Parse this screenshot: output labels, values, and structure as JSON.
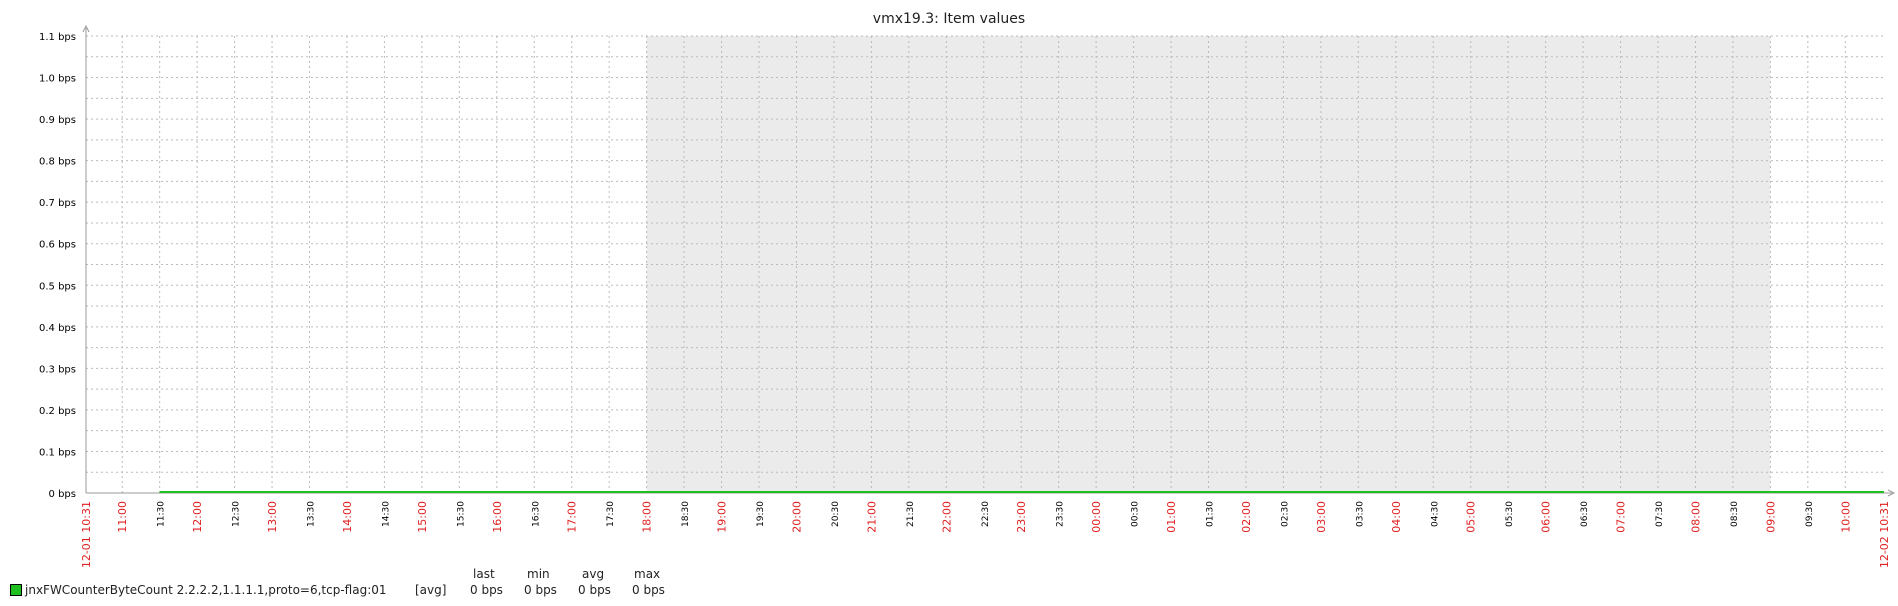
{
  "chart_data": {
    "type": "line",
    "title": "vmx19.3: Item values",
    "ylabel": "",
    "xlabel": "",
    "y_ticks": [
      "0 bps",
      "0.1 bps",
      "0.2 bps",
      "0.3 bps",
      "0.4 bps",
      "0.5 bps",
      "0.6 bps",
      "0.7 bps",
      "0.8 bps",
      "0.9 bps",
      "1.0 bps",
      "1.1 bps"
    ],
    "ylim": [
      0,
      1.1
    ],
    "x_start_label": "12-01 10:31",
    "x_end_label": "12-02 10:31",
    "x_ticks": [
      {
        "label": "11:00",
        "major": true
      },
      {
        "label": "11:30",
        "major": false
      },
      {
        "label": "12:00",
        "major": true
      },
      {
        "label": "12:30",
        "major": false
      },
      {
        "label": "13:00",
        "major": true
      },
      {
        "label": "13:30",
        "major": false
      },
      {
        "label": "14:00",
        "major": true
      },
      {
        "label": "14:30",
        "major": false
      },
      {
        "label": "15:00",
        "major": true
      },
      {
        "label": "15:30",
        "major": false
      },
      {
        "label": "16:00",
        "major": true
      },
      {
        "label": "16:30",
        "major": false
      },
      {
        "label": "17:00",
        "major": true
      },
      {
        "label": "17:30",
        "major": false
      },
      {
        "label": "18:00",
        "major": true
      },
      {
        "label": "18:30",
        "major": false
      },
      {
        "label": "19:00",
        "major": true
      },
      {
        "label": "19:30",
        "major": false
      },
      {
        "label": "20:00",
        "major": true
      },
      {
        "label": "20:30",
        "major": false
      },
      {
        "label": "21:00",
        "major": true
      },
      {
        "label": "21:30",
        "major": false
      },
      {
        "label": "22:00",
        "major": true
      },
      {
        "label": "22:30",
        "major": false
      },
      {
        "label": "23:00",
        "major": true
      },
      {
        "label": "23:30",
        "major": false
      },
      {
        "label": "00:00",
        "major": true
      },
      {
        "label": "00:30",
        "major": false
      },
      {
        "label": "01:00",
        "major": true
      },
      {
        "label": "01:30",
        "major": false
      },
      {
        "label": "02:00",
        "major": true
      },
      {
        "label": "02:30",
        "major": false
      },
      {
        "label": "03:00",
        "major": true
      },
      {
        "label": "03:30",
        "major": false
      },
      {
        "label": "04:00",
        "major": true
      },
      {
        "label": "04:30",
        "major": false
      },
      {
        "label": "05:00",
        "major": true
      },
      {
        "label": "05:30",
        "major": false
      },
      {
        "label": "06:00",
        "major": true
      },
      {
        "label": "06:30",
        "major": false
      },
      {
        "label": "07:00",
        "major": true
      },
      {
        "label": "07:30",
        "major": false
      },
      {
        "label": "08:00",
        "major": true
      },
      {
        "label": "08:30",
        "major": false
      },
      {
        "label": "09:00",
        "major": true
      },
      {
        "label": "09:30",
        "major": false
      },
      {
        "label": "10:00",
        "major": true
      }
    ],
    "shaded_period": {
      "from": "18:00",
      "to": "09:00"
    },
    "series": [
      {
        "name": "jnxFWCounterByteCount 2.2.2.2,1.1.1.1,proto=6,tcp-flag:01",
        "func": "[avg]",
        "color": "#1fbf1f",
        "data_from": "11:30",
        "data_to": "12-02 10:31",
        "value": 0,
        "last": "0 bps",
        "min": "0 bps",
        "avg": "0 bps",
        "max": "0 bps"
      }
    ],
    "grid": true
  },
  "legend": {
    "headers": {
      "last": "last",
      "min": "min",
      "avg": "avg",
      "max": "max"
    }
  },
  "colors": {
    "major_tick_label": "#e02020",
    "minor_tick_label": "#000000",
    "shade": "#ebebeb",
    "grid": "#bbbbbb",
    "series": "#1fbf1f"
  }
}
